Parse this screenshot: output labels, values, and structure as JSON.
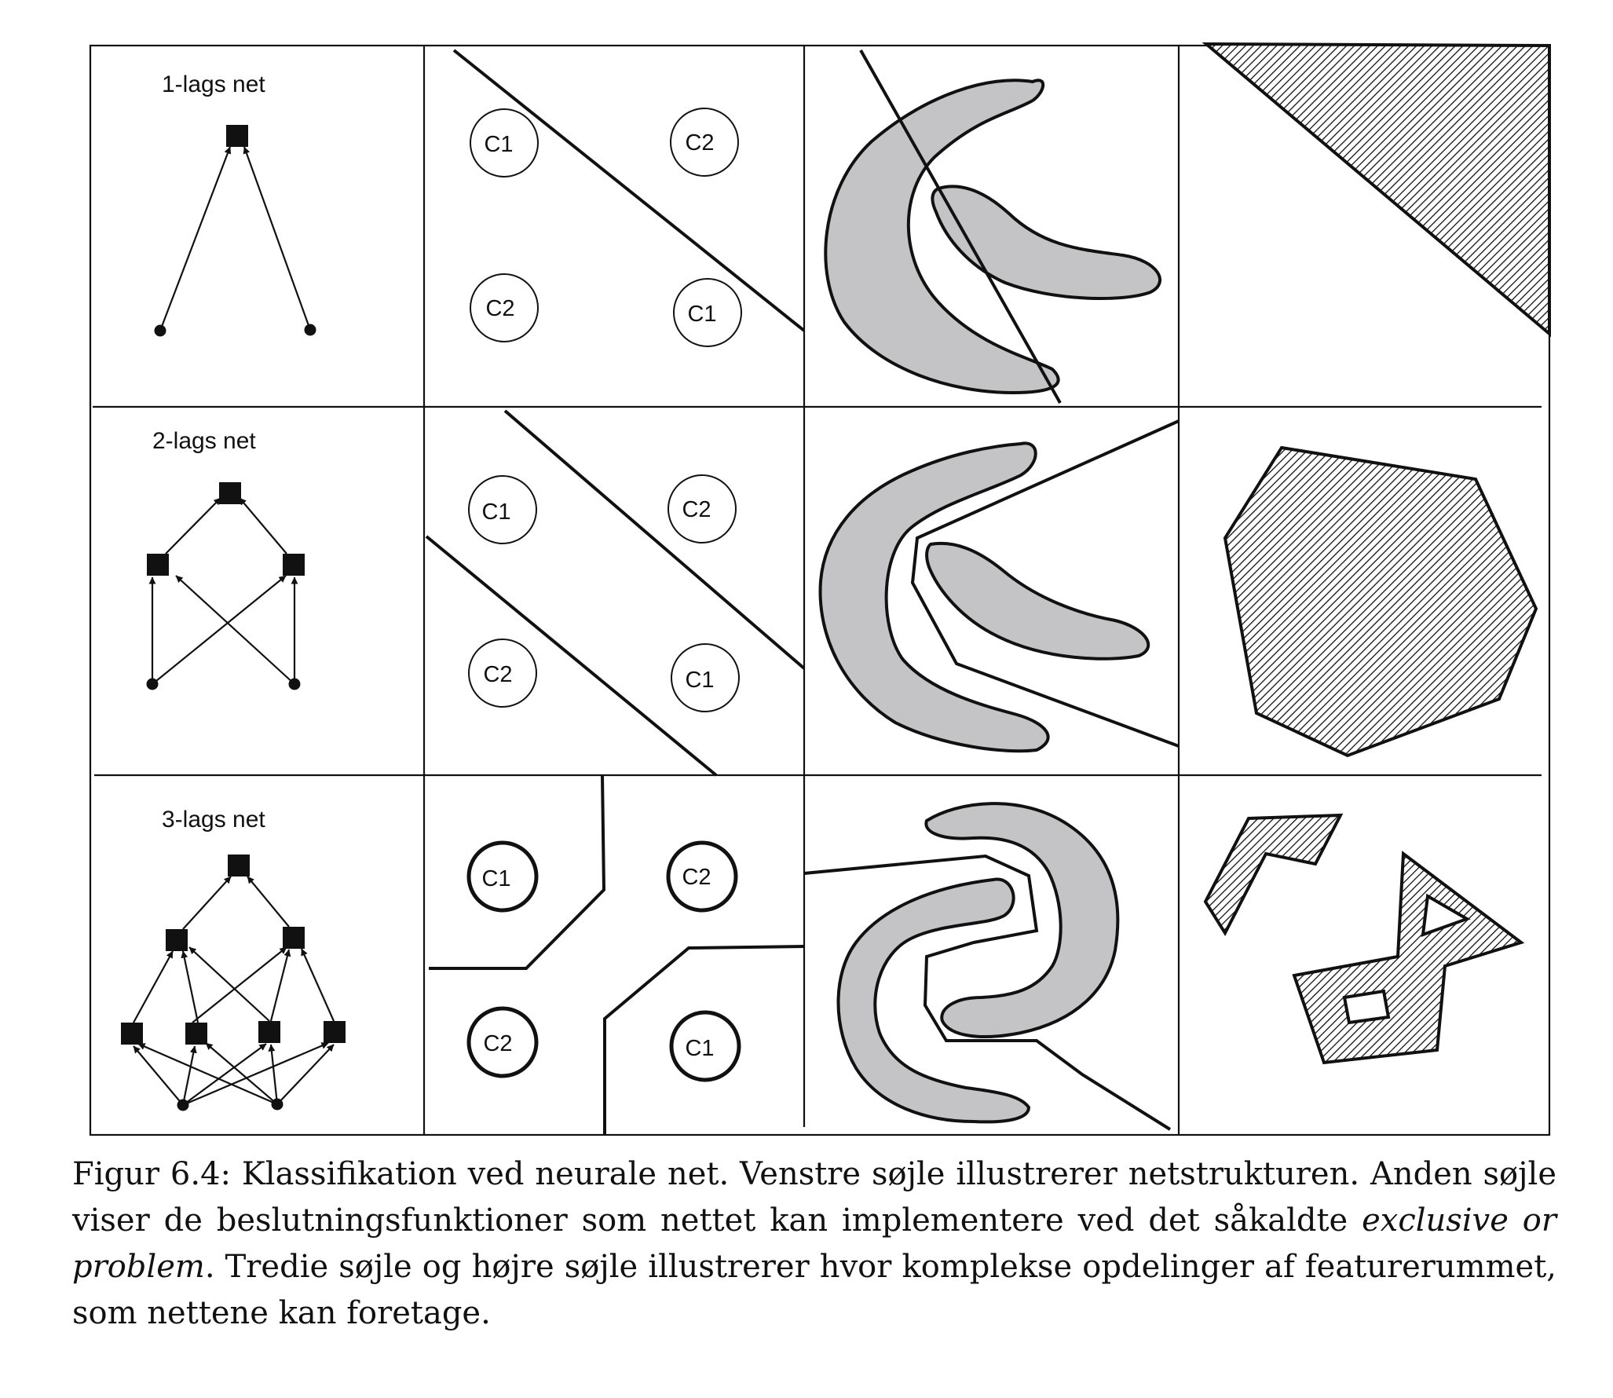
{
  "rows": [
    {
      "title": "1-lags net"
    },
    {
      "title": "2-lags net"
    },
    {
      "title": "3-lags net"
    }
  ],
  "xor_panels": [
    {
      "top_left": "C1",
      "top_right": "C2",
      "bottom_left": "C2",
      "bottom_right": "C1"
    },
    {
      "top_left": "C1",
      "top_right": "C2",
      "bottom_left": "C2",
      "bottom_right": "C1"
    },
    {
      "top_left": "C1",
      "top_right": "C2",
      "bottom_left": "C2",
      "bottom_right": "C1"
    }
  ],
  "colors": {
    "line": "#111111",
    "class_region_fill": "#c4c3c6",
    "hatch_line": "#111111"
  },
  "caption": {
    "part1": "Figur 6.4: Klassifikation ved neurale net. Venstre søjle illustrerer netstrukturen. Anden søjle viser de beslutningsfunktioner som nettet kan implementere ved det såkaldte ",
    "italic": "exclusive or problem",
    "part2": ". Tredie søjle og højre søjle illustrerer hvor komplekse opdelinger af featurerummet, som nettene kan foretage."
  }
}
